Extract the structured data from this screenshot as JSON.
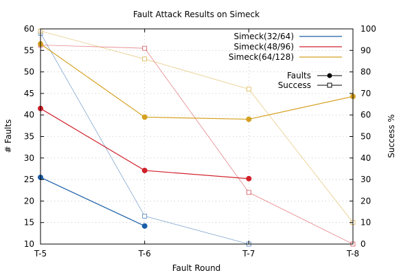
{
  "chart_data": {
    "type": "line",
    "title": "Fault Attack Results on Simeck",
    "xlabel": "Fault Round",
    "ylabel": "# Faults",
    "y2label": "Success %",
    "categories": [
      "T-5",
      "T-6",
      "T-7",
      "T-8"
    ],
    "ylim": [
      10,
      60
    ],
    "yticks": [
      10,
      15,
      20,
      25,
      30,
      35,
      40,
      45,
      50,
      55,
      60
    ],
    "y2lim": [
      0,
      100
    ],
    "y2ticks": [
      0,
      10,
      20,
      30,
      40,
      50,
      60,
      70,
      80,
      90,
      100
    ],
    "grid": true,
    "legend_position": "top-right",
    "series": [
      {
        "name": "Simeck(32/64)",
        "color": "#1c5fa8",
        "faults": [
          25.5,
          14.2,
          null,
          null
        ],
        "success": [
          98,
          13,
          0,
          null
        ]
      },
      {
        "name": "Simeck(48/96)",
        "color": "#d0202a",
        "faults": [
          41.5,
          27.1,
          25.2,
          null
        ],
        "success": [
          92.5,
          91,
          24,
          0
        ]
      },
      {
        "name": "Simeck(64/128)",
        "color": "#d4a020",
        "faults": [
          56.5,
          39.5,
          39.0,
          44.3
        ],
        "success": [
          99,
          86,
          72,
          10
        ]
      }
    ],
    "marker_legend": [
      {
        "label": "Faults",
        "marker": "filled-circle"
      },
      {
        "label": "Success",
        "marker": "hollow-square"
      }
    ]
  }
}
